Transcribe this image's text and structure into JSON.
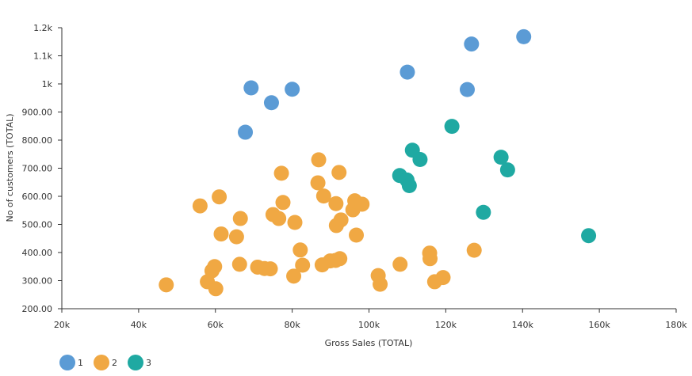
{
  "chart_data": {
    "type": "scatter",
    "xlabel": "Gross Sales (TOTAL)",
    "ylabel": "No of customers (TOTAL)",
    "xlim": [
      20000,
      180000
    ],
    "ylim": [
      200,
      1200
    ],
    "x_ticks": [
      {
        "value": 20000,
        "label": "20k"
      },
      {
        "value": 40000,
        "label": "40k"
      },
      {
        "value": 60000,
        "label": "60k"
      },
      {
        "value": 80000,
        "label": "80k"
      },
      {
        "value": 100000,
        "label": "100k"
      },
      {
        "value": 120000,
        "label": "120k"
      },
      {
        "value": 140000,
        "label": "140k"
      },
      {
        "value": 160000,
        "label": "160k"
      },
      {
        "value": 180000,
        "label": "180k"
      }
    ],
    "y_ticks": [
      {
        "value": 200,
        "label": "200.00"
      },
      {
        "value": 300,
        "label": "300.00"
      },
      {
        "value": 400,
        "label": "400.00"
      },
      {
        "value": 500,
        "label": "500.00"
      },
      {
        "value": 600,
        "label": "600.00"
      },
      {
        "value": 700,
        "label": "700.00"
      },
      {
        "value": 800,
        "label": "800.00"
      },
      {
        "value": 900,
        "label": "900.00"
      },
      {
        "value": 1000,
        "label": "1k"
      },
      {
        "value": 1100,
        "label": "1.1k"
      },
      {
        "value": 1200,
        "label": "1.2k"
      }
    ],
    "legend_position": "bottom-left",
    "series": [
      {
        "name": "1",
        "color": "#5b9bd5",
        "points": [
          {
            "x": 67800,
            "y": 828
          },
          {
            "x": 69300,
            "y": 986
          },
          {
            "x": 74600,
            "y": 933
          },
          {
            "x": 80000,
            "y": 981
          },
          {
            "x": 110000,
            "y": 1042
          },
          {
            "x": 125600,
            "y": 980
          },
          {
            "x": 126700,
            "y": 1142
          },
          {
            "x": 140300,
            "y": 1168
          }
        ]
      },
      {
        "name": "2",
        "color": "#f0a843",
        "points": [
          {
            "x": 47200,
            "y": 285
          },
          {
            "x": 56000,
            "y": 566
          },
          {
            "x": 57900,
            "y": 296
          },
          {
            "x": 59100,
            "y": 335
          },
          {
            "x": 59800,
            "y": 350
          },
          {
            "x": 60100,
            "y": 271
          },
          {
            "x": 61000,
            "y": 598
          },
          {
            "x": 61500,
            "y": 466
          },
          {
            "x": 65500,
            "y": 456
          },
          {
            "x": 66300,
            "y": 358
          },
          {
            "x": 66500,
            "y": 521
          },
          {
            "x": 71000,
            "y": 348
          },
          {
            "x": 72800,
            "y": 343
          },
          {
            "x": 74300,
            "y": 342
          },
          {
            "x": 75000,
            "y": 535
          },
          {
            "x": 76500,
            "y": 521
          },
          {
            "x": 77200,
            "y": 682
          },
          {
            "x": 77600,
            "y": 578
          },
          {
            "x": 80400,
            "y": 316
          },
          {
            "x": 80700,
            "y": 507
          },
          {
            "x": 82100,
            "y": 409
          },
          {
            "x": 82700,
            "y": 355
          },
          {
            "x": 86900,
            "y": 730
          },
          {
            "x": 86700,
            "y": 648
          },
          {
            "x": 87800,
            "y": 356
          },
          {
            "x": 88200,
            "y": 601
          },
          {
            "x": 89900,
            "y": 370
          },
          {
            "x": 91300,
            "y": 372
          },
          {
            "x": 91400,
            "y": 574
          },
          {
            "x": 91500,
            "y": 496
          },
          {
            "x": 92200,
            "y": 685
          },
          {
            "x": 92400,
            "y": 378
          },
          {
            "x": 92700,
            "y": 516
          },
          {
            "x": 95800,
            "y": 552
          },
          {
            "x": 96300,
            "y": 584
          },
          {
            "x": 96700,
            "y": 462
          },
          {
            "x": 98200,
            "y": 572
          },
          {
            "x": 102400,
            "y": 318
          },
          {
            "x": 102900,
            "y": 287
          },
          {
            "x": 108100,
            "y": 358
          },
          {
            "x": 115800,
            "y": 398
          },
          {
            "x": 115900,
            "y": 378
          },
          {
            "x": 117100,
            "y": 296
          },
          {
            "x": 119300,
            "y": 311
          },
          {
            "x": 127400,
            "y": 408
          }
        ]
      },
      {
        "name": "3",
        "color": "#1fa9a2",
        "points": [
          {
            "x": 108000,
            "y": 674
          },
          {
            "x": 109900,
            "y": 658
          },
          {
            "x": 110500,
            "y": 638
          },
          {
            "x": 111300,
            "y": 764
          },
          {
            "x": 113300,
            "y": 731
          },
          {
            "x": 121600,
            "y": 849
          },
          {
            "x": 129800,
            "y": 543
          },
          {
            "x": 134400,
            "y": 739
          },
          {
            "x": 136100,
            "y": 694
          },
          {
            "x": 157200,
            "y": 460
          }
        ]
      }
    ]
  }
}
